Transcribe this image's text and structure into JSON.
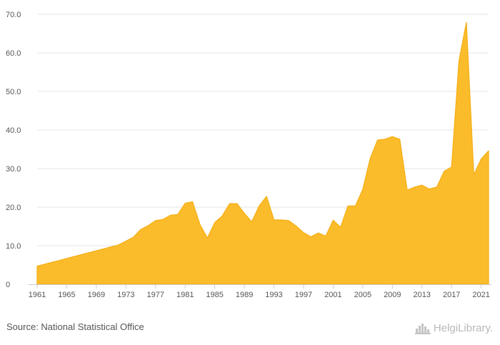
{
  "chart_data": {
    "type": "area",
    "title": "",
    "xlabel": "",
    "ylabel": "",
    "x": [
      1961,
      1962,
      1963,
      1964,
      1965,
      1966,
      1967,
      1968,
      1969,
      1970,
      1971,
      1972,
      1973,
      1974,
      1975,
      1976,
      1977,
      1978,
      1979,
      1980,
      1981,
      1982,
      1983,
      1984,
      1985,
      1986,
      1987,
      1988,
      1989,
      1990,
      1991,
      1992,
      1993,
      1994,
      1995,
      1996,
      1997,
      1998,
      1999,
      2000,
      2001,
      2002,
      2003,
      2004,
      2005,
      2006,
      2007,
      2008,
      2009,
      2010,
      2011,
      2012,
      2013,
      2014,
      2015,
      2016,
      2017,
      2018,
      2019,
      2020,
      2021,
      2022
    ],
    "values": [
      4.7,
      5.2,
      5.7,
      6.2,
      6.7,
      7.2,
      7.7,
      8.2,
      8.7,
      9.2,
      9.7,
      10.2,
      11.2,
      12.2,
      14.2,
      15.2,
      16.5,
      16.8,
      17.9,
      18.1,
      21.0,
      21.4,
      15.5,
      12.0,
      16.0,
      17.7,
      20.9,
      20.9,
      18.4,
      16.2,
      20.3,
      22.8,
      16.7,
      16.7,
      16.5,
      15.1,
      13.4,
      12.3,
      13.3,
      12.5,
      16.6,
      14.8,
      20.3,
      20.3,
      24.6,
      32.6,
      37.4,
      37.6,
      38.3,
      37.6,
      24.4,
      25.2,
      25.7,
      24.7,
      25.2,
      29.3,
      30.4,
      57.9,
      67.9,
      28.4,
      32.5,
      34.6
    ],
    "ylim": [
      0,
      70
    ],
    "y_ticks": [
      "0",
      "10.0",
      "20.0",
      "30.0",
      "40.0",
      "50.0",
      "60.0",
      "70.0"
    ],
    "x_tick_labels": [
      "1961",
      "1965",
      "1969",
      "1973",
      "1977",
      "1981",
      "1985",
      "1989",
      "1993",
      "1997",
      "2001",
      "2005",
      "2009",
      "2013",
      "2017",
      "2021"
    ],
    "grid": "horizontal",
    "colors": {
      "area": "#fbbc2c",
      "line": "#f4ad10",
      "grid": "#e6e6e6"
    }
  },
  "footer": {
    "source": "Source: National Statistical Office",
    "brand": "HelgiLibrary."
  },
  "icons": {
    "brand_logo": "skyline-icon"
  }
}
